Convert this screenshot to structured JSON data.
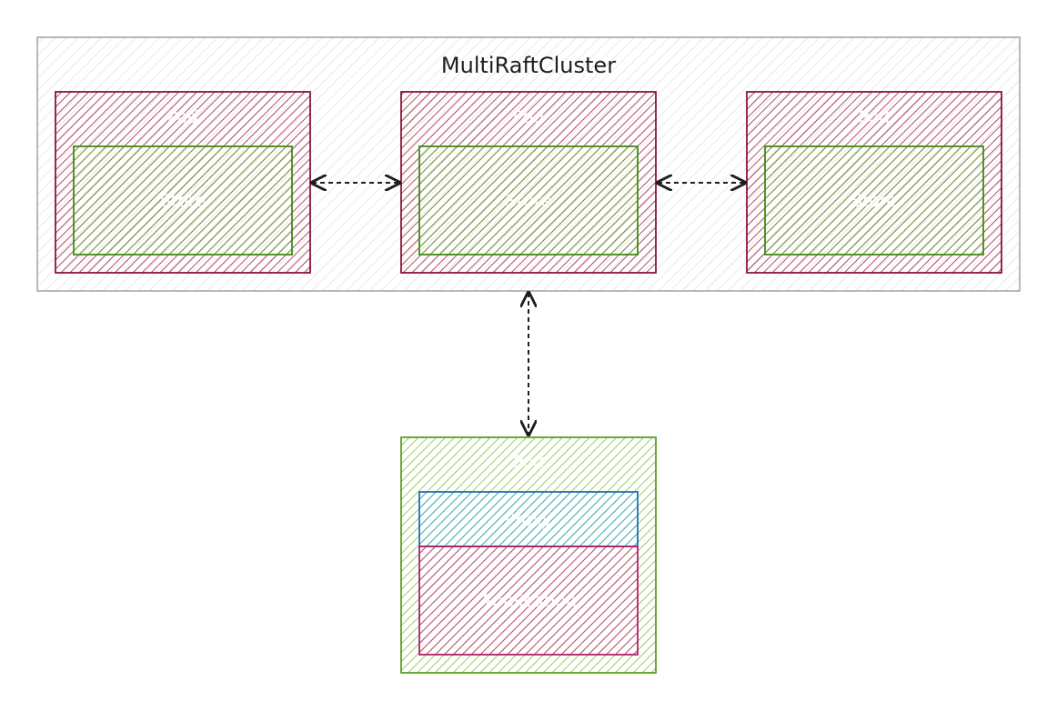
{
  "cluster": {
    "title": "MultiRaftCluster"
  },
  "nodes": [
    {
      "pod_label": "Pod",
      "store_label": "Store"
    },
    {
      "pod_label": "Pod",
      "store_label": "Store"
    },
    {
      "pod_label": "Pod",
      "store_label": "Store"
    }
  ],
  "client": {
    "pod_label": "Pod",
    "proxy_label": "Proxy",
    "app_label": "Application"
  },
  "colors": {
    "cluster_border": "#a0a0a0",
    "pod_red": "#a51d3e",
    "store_green": "#3f8a14",
    "client_green": "#6aab2e",
    "proxy_blue": "#1f6fb0",
    "app_magenta": "#b0206a"
  }
}
